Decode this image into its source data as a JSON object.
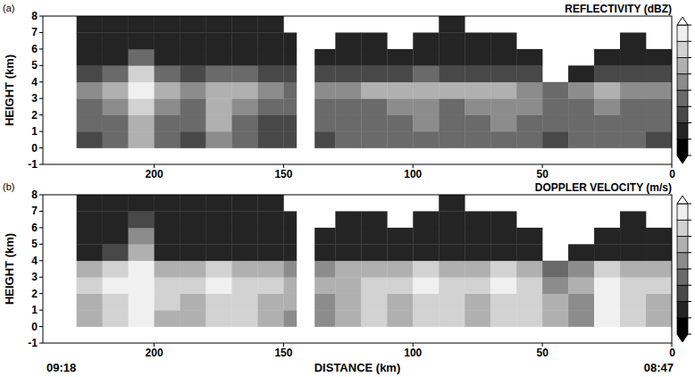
{
  "chart_data": [
    {
      "type": "heatmap",
      "panel_label": "(a)",
      "title": "REFLECTIVITY (dBZ)",
      "ylabel": "HEIGHT (km)",
      "xlim": [
        243,
        0
      ],
      "xticks": [
        200,
        150,
        100,
        50,
        0
      ],
      "ylim": [
        -1,
        8
      ],
      "yticks": [
        -1,
        0,
        1,
        2,
        3,
        4,
        5,
        6,
        7,
        8
      ],
      "x_edges": [
        230,
        220,
        210,
        200,
        190,
        180,
        170,
        160,
        150,
        145,
        138,
        130,
        120,
        110,
        100,
        90,
        80,
        70,
        60,
        50,
        40,
        30,
        20,
        10,
        0
      ],
      "y_edges": [
        -1,
        0,
        1,
        2,
        3,
        4,
        5,
        6,
        7,
        8
      ],
      "cells": [
        [
          null,
          null,
          null,
          null,
          null,
          null,
          null,
          null,
          null,
          null,
          null,
          null,
          null,
          null,
          null,
          null,
          null,
          null,
          null,
          null,
          null,
          null,
          null,
          null
        ],
        [
          18,
          22,
          30,
          24,
          18,
          26,
          22,
          16,
          16,
          null,
          18,
          20,
          20,
          22,
          24,
          20,
          22,
          24,
          22,
          18,
          20,
          22,
          20,
          18
        ],
        [
          20,
          24,
          34,
          24,
          20,
          30,
          24,
          18,
          18,
          null,
          20,
          22,
          22,
          24,
          26,
          22,
          24,
          26,
          24,
          20,
          22,
          24,
          22,
          20
        ],
        [
          22,
          26,
          38,
          26,
          22,
          34,
          26,
          20,
          20,
          null,
          22,
          24,
          24,
          26,
          28,
          24,
          26,
          28,
          26,
          22,
          24,
          26,
          24,
          22
        ],
        [
          26,
          30,
          42,
          30,
          26,
          34,
          30,
          26,
          24,
          null,
          26,
          28,
          30,
          30,
          32,
          30,
          32,
          32,
          28,
          20,
          28,
          30,
          28,
          26
        ],
        [
          18,
          22,
          36,
          20,
          18,
          22,
          22,
          16,
          16,
          null,
          16,
          18,
          18,
          18,
          20,
          18,
          18,
          18,
          16,
          null,
          12,
          16,
          16,
          16
        ],
        [
          12,
          14,
          20,
          14,
          12,
          14,
          14,
          12,
          12,
          null,
          12,
          12,
          14,
          14,
          14,
          14,
          12,
          14,
          12,
          null,
          null,
          12,
          12,
          12
        ],
        [
          10,
          12,
          14,
          12,
          10,
          12,
          12,
          10,
          10,
          null,
          null,
          10,
          10,
          null,
          10,
          12,
          10,
          10,
          null,
          null,
          null,
          null,
          10,
          null
        ],
        [
          10,
          10,
          12,
          10,
          10,
          10,
          10,
          10,
          null,
          null,
          null,
          null,
          null,
          null,
          null,
          10,
          null,
          null,
          null,
          null,
          null,
          null,
          null,
          null
        ]
      ],
      "colorbar": {
        "range": [
          5,
          45
        ],
        "levels": [
          5,
          10,
          15,
          20,
          25,
          30,
          35,
          40,
          45
        ]
      }
    },
    {
      "type": "heatmap",
      "panel_label": "(b)",
      "title": "DOPPLER VELOCITY (m/s)",
      "ylabel": "HEIGHT (km)",
      "xlabel": "DISTANCE (km)",
      "start_time": "09:18",
      "end_time": "08:47",
      "xlim": [
        243,
        0
      ],
      "xticks": [
        200,
        150,
        100,
        50,
        0
      ],
      "ylim": [
        -1,
        8
      ],
      "yticks": [
        -1,
        0,
        1,
        2,
        3,
        4,
        5,
        6,
        7,
        8
      ],
      "x_edges": [
        230,
        220,
        210,
        200,
        190,
        180,
        170,
        160,
        150,
        145,
        138,
        130,
        120,
        110,
        100,
        90,
        80,
        70,
        60,
        50,
        40,
        30,
        20,
        10,
        0
      ],
      "y_edges": [
        -1,
        0,
        1,
        2,
        3,
        4,
        5,
        6,
        7,
        8
      ],
      "cells": [
        [
          null,
          null,
          null,
          null,
          null,
          null,
          null,
          null,
          null,
          null,
          null,
          null,
          null,
          null,
          null,
          null,
          null,
          null,
          null,
          null,
          null,
          null,
          null,
          null
        ],
        [
          5,
          6,
          7,
          5,
          5,
          6,
          6,
          5,
          4,
          null,
          4,
          5,
          6,
          5,
          6,
          6,
          5,
          6,
          6,
          5,
          4,
          7,
          6,
          5
        ],
        [
          5,
          6,
          7,
          6,
          5,
          6,
          6,
          5,
          5,
          null,
          4,
          5,
          6,
          5,
          6,
          6,
          5,
          6,
          6,
          5,
          4,
          7,
          6,
          5
        ],
        [
          6,
          7,
          7,
          6,
          6,
          7,
          6,
          6,
          5,
          null,
          5,
          5,
          6,
          6,
          7,
          6,
          6,
          7,
          6,
          4,
          5,
          7,
          6,
          6
        ],
        [
          5,
          6,
          7,
          5,
          5,
          6,
          5,
          5,
          4,
          null,
          4,
          5,
          5,
          5,
          6,
          5,
          5,
          6,
          5,
          3,
          4,
          6,
          5,
          5
        ],
        [
          1,
          2,
          5,
          1,
          1,
          1,
          1,
          1,
          1,
          null,
          1,
          1,
          1,
          1,
          1,
          1,
          1,
          1,
          1,
          null,
          1,
          1,
          1,
          1
        ],
        [
          1,
          1,
          4,
          1,
          1,
          1,
          1,
          1,
          1,
          null,
          1,
          1,
          1,
          1,
          1,
          1,
          1,
          1,
          1,
          null,
          null,
          1,
          1,
          1
        ],
        [
          1,
          1,
          2,
          1,
          1,
          1,
          1,
          1,
          1,
          null,
          null,
          1,
          1,
          null,
          1,
          1,
          1,
          1,
          null,
          null,
          null,
          null,
          1,
          null
        ],
        [
          1,
          1,
          1,
          1,
          1,
          1,
          1,
          1,
          null,
          null,
          null,
          null,
          null,
          null,
          null,
          1,
          null,
          null,
          null,
          null,
          null,
          null,
          null,
          null
        ]
      ],
      "colorbar": {
        "range": [
          0,
          8
        ],
        "levels": [
          0,
          1,
          2,
          3,
          4,
          5,
          6,
          7,
          8
        ]
      }
    }
  ]
}
